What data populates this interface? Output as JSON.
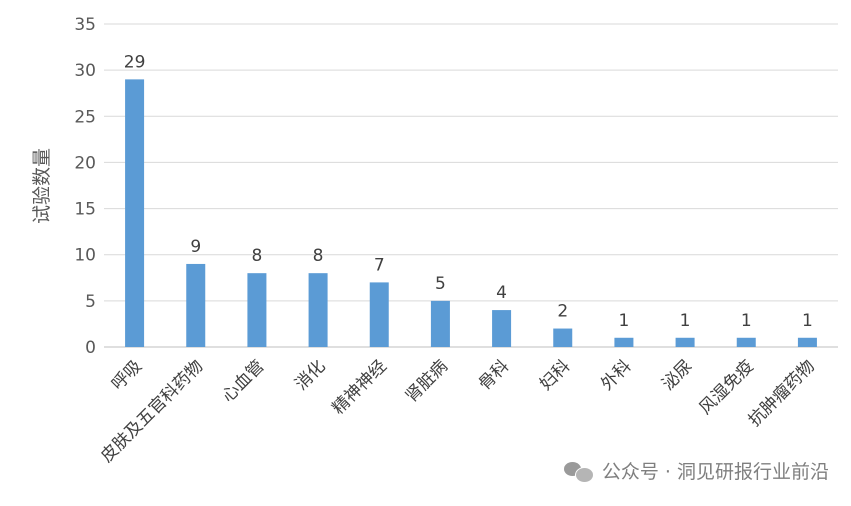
{
  "chart_data": {
    "type": "bar",
    "title": "",
    "xlabel": "",
    "ylabel": "试验数量",
    "ylim": [
      0,
      35
    ],
    "yticks": [
      0,
      5,
      10,
      15,
      20,
      25,
      30,
      35
    ],
    "grid": true,
    "categories": [
      "呼吸",
      "皮肤及五官科药物",
      "心血管",
      "消化",
      "精神神经",
      "肾脏病",
      "骨科",
      "妇科",
      "外科",
      "泌尿",
      "风湿免疫",
      "抗肿瘤药物"
    ],
    "values": [
      29,
      9,
      8,
      8,
      7,
      5,
      4,
      2,
      1,
      1,
      1,
      1
    ],
    "bar_color": "#5B9BD5"
  },
  "watermark": {
    "icon": "wechat-icon",
    "text": "公众号 · 洞见研报行业前沿"
  }
}
